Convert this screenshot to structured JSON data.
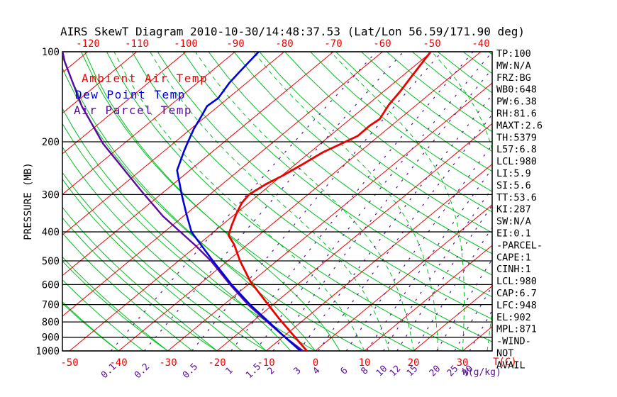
{
  "title": "AIRS SkewT Diagram 2010-10-30/14:48:37.53 (Lat/Lon 56.59/171.90 deg)",
  "legend": {
    "ambient": "Ambient Air Temp",
    "dewpoint": "Dew Point Temp",
    "parcel": "Air Parcel Temp"
  },
  "axes": {
    "top_ticks": [
      -120,
      -110,
      -100,
      -90,
      -80,
      -70,
      -60,
      -50,
      -40
    ],
    "bottom_ticks": [
      -50,
      -40,
      -30,
      -20,
      -10,
      0,
      10,
      20,
      30
    ],
    "bottom_label": "T(C)",
    "mixing_unit_label": "W(g/kg)",
    "pressure_ticks": [
      100,
      200,
      300,
      400,
      500,
      600,
      700,
      800,
      900,
      1000
    ],
    "pressure_label": "PRESSURE (MB)"
  },
  "panel": {
    "lines": [
      "TP:100",
      "MW:N/A",
      "FRZ:BG",
      "WB0:648",
      "PW:6.38",
      "RH:81.6",
      "MAXT:2.6",
      "TH:5379",
      "L57:6.8",
      "LCL:980",
      "LI:5.9",
      "SI:5.6",
      "TT:53.6",
      "KI:287",
      "SW:N/A",
      "EI:0.1",
      "-PARCEL-",
      "CAPE:1",
      "CINH:1",
      "LCL:980",
      "CAP:6.7",
      "LFC:948",
      "EL:902",
      "MPL:871",
      "-WIND-",
      "NOT",
      "AVAIL"
    ]
  },
  "colors": {
    "ambient": "#ee0000",
    "dewpoint": "#0000dd",
    "parcel": "#5a0b9d",
    "isotherm": "#ee0000",
    "adiabat": "#00c020",
    "mixing": "#5a0b9d",
    "grid": "#000000",
    "background": "#ffffff"
  },
  "chart_data": {
    "type": "line",
    "title": "AIRS SkewT Diagram 2010-10-30/14:48:37.53 (Lat/Lon 56.59/171.90 deg)",
    "x_axis": {
      "label": "T(C)",
      "surface_range_c": [
        -50,
        30
      ],
      "tick_step_c": 10,
      "skewed": true
    },
    "y_axis": {
      "label": "PRESSURE (MB)",
      "range_mb": [
        100,
        1000
      ],
      "scale": "log",
      "tick_step_mb": 100
    },
    "legend_position": "top-left-inside",
    "grid": true,
    "background_lines": {
      "isotherms_c": [
        -130,
        -120,
        -110,
        -100,
        -90,
        -80,
        -70,
        -60,
        -50,
        -40,
        -30,
        -20,
        -10,
        0,
        10,
        20,
        30,
        40
      ],
      "dry_adiabats_theta_c": [
        -40,
        -30,
        -20,
        -10,
        0,
        10,
        20,
        30,
        40,
        50,
        60,
        70,
        80,
        90,
        100,
        110,
        120,
        130,
        140,
        150,
        160,
        170,
        180
      ],
      "moist_adiabats_thetaw_solid_c": [
        -40,
        -35,
        -30,
        -25,
        -20,
        -15,
        -10,
        -5,
        0,
        5
      ],
      "moist_adiabats_thetaw_dashed_c": [
        10,
        15,
        20,
        25,
        30,
        35,
        40
      ],
      "mixing_ratio_g_per_kg": [
        0.1,
        0.2,
        0.5,
        1,
        1.5,
        2,
        3,
        4,
        6,
        8,
        10,
        12,
        15,
        20,
        25,
        30
      ]
    },
    "series": [
      {
        "name": "Ambient Air Temp",
        "color": "#ee0000",
        "points_p_T": [
          [
            1000,
            -1.7
          ],
          [
            880,
            -8.7
          ],
          [
            780,
            -15.3
          ],
          [
            675,
            -22.9
          ],
          [
            586,
            -30.3
          ],
          [
            500,
            -37.5
          ],
          [
            441,
            -42.7
          ],
          [
            411,
            -46.1
          ],
          [
            381,
            -47.9
          ],
          [
            345,
            -50.0
          ],
          [
            320,
            -51.4
          ],
          [
            300,
            -52.0
          ],
          [
            277,
            -51.1
          ],
          [
            258,
            -49.7
          ],
          [
            235,
            -48.4
          ],
          [
            217,
            -47.4
          ],
          [
            202,
            -45.6
          ],
          [
            191,
            -44.3
          ],
          [
            177,
            -44.4
          ],
          [
            168,
            -44.0
          ],
          [
            150,
            -45.7
          ],
          [
            135,
            -46.7
          ],
          [
            121,
            -48.0
          ],
          [
            100,
            -50.2
          ]
        ]
      },
      {
        "name": "Dew Point Temp",
        "color": "#0000dd",
        "points_p_T": [
          [
            1000,
            -3.0
          ],
          [
            906,
            -9.1
          ],
          [
            804,
            -16.3
          ],
          [
            701,
            -24.6
          ],
          [
            602,
            -33.2
          ],
          [
            500,
            -43.0
          ],
          [
            441,
            -49.5
          ],
          [
            400,
            -54.5
          ],
          [
            349,
            -59.9
          ],
          [
            300,
            -65.7
          ],
          [
            249,
            -72.6
          ],
          [
            214,
            -76.0
          ],
          [
            200,
            -77.4
          ],
          [
            181,
            -79.4
          ],
          [
            165,
            -80.9
          ],
          [
            152,
            -82.3
          ],
          [
            143,
            -82.0
          ],
          [
            127,
            -83.5
          ],
          [
            116,
            -84.2
          ],
          [
            100,
            -85.2
          ]
        ]
      },
      {
        "name": "Air Parcel Temp",
        "color": "#5a0b9d",
        "points_p_T": [
          [
            1000,
            -2.5
          ],
          [
            900,
            -9.5
          ],
          [
            800,
            -16.9
          ],
          [
            700,
            -25.1
          ],
          [
            600,
            -33.7
          ],
          [
            500,
            -43.4
          ],
          [
            446,
            -50.1
          ],
          [
            355,
            -64.1
          ],
          [
            293,
            -74.6
          ],
          [
            203,
            -94.2
          ],
          [
            152,
            -107.8
          ],
          [
            108,
            -122.2
          ],
          [
            100,
            -125.1
          ]
        ]
      }
    ]
  }
}
